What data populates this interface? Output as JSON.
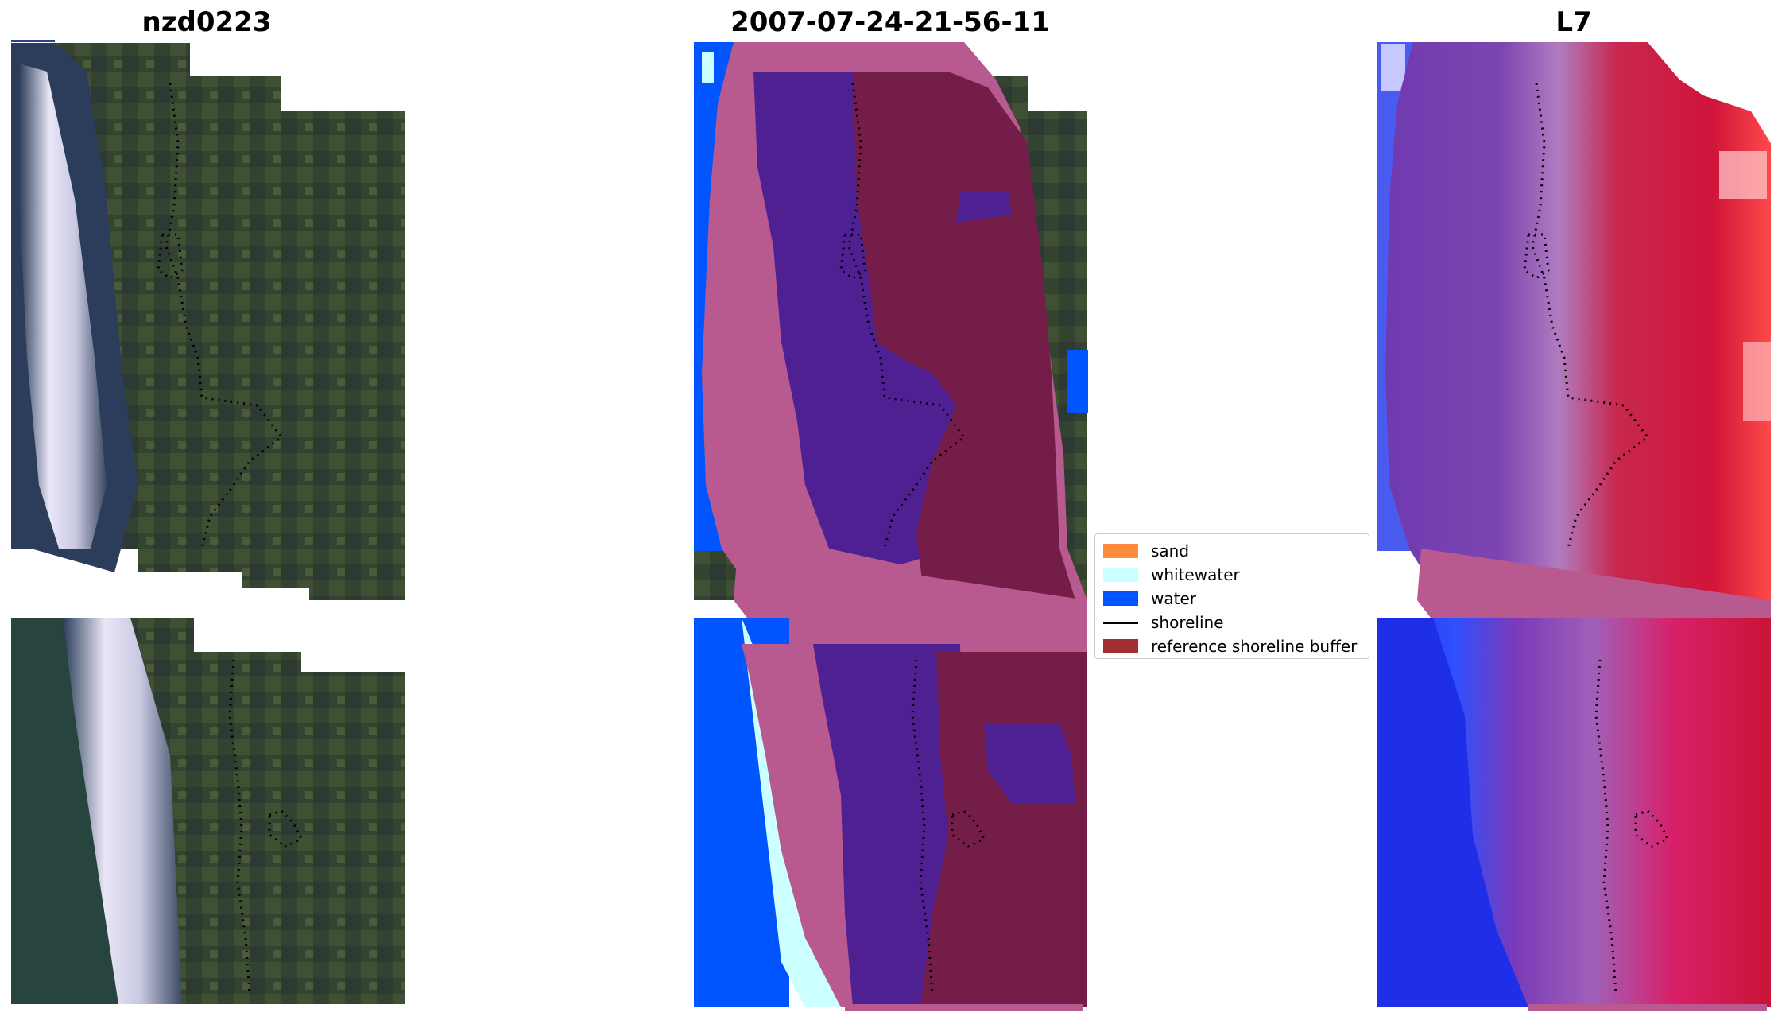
{
  "panels": [
    {
      "title": "nzd0223"
    },
    {
      "title": "2007-07-24-21-56-11"
    },
    {
      "title": "L7"
    }
  ],
  "legend": {
    "items": [
      {
        "label": "sand",
        "color": "#ff8c3a",
        "kind": "patch"
      },
      {
        "label": "whitewater",
        "color": "#ccffff",
        "kind": "patch"
      },
      {
        "label": "water",
        "color": "#0055ff",
        "kind": "patch"
      },
      {
        "label": "shoreline",
        "color": "#000000",
        "kind": "line"
      },
      {
        "label": "reference shoreline buffer",
        "color": "#a03030",
        "kind": "patch"
      }
    ]
  },
  "colors": {
    "class_water": "#0055ff",
    "class_whitewater": "#ccffff",
    "class_sand_overlay": "#b85a90",
    "class_land_purple": "#4e2091",
    "class_buffer": "#741d48",
    "rgb_vegetation": "#3b4a33",
    "rgb_surf": "#dcdaf0",
    "index_water": "#1f2fe8",
    "index_land": "#c81435"
  }
}
